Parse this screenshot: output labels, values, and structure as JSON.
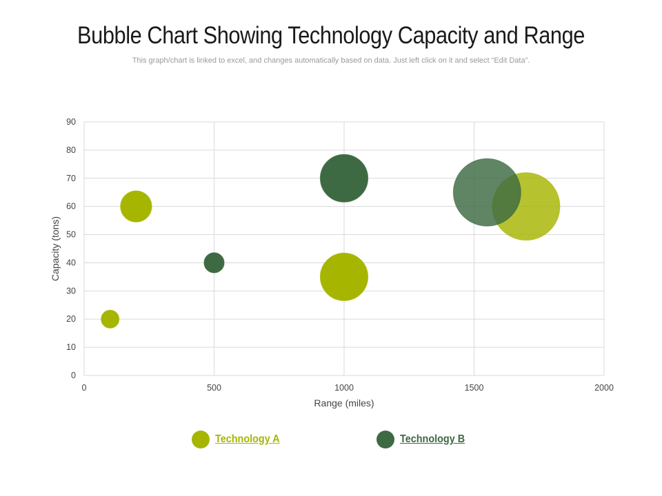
{
  "page": {
    "title": "Bubble Chart Showing Technology Capacity and Range",
    "subtitle": "This graph/chart is linked to excel, and changes automatically based on data. Just left click on it and select “Edit Data”."
  },
  "colors": {
    "technology_a": "#a6b600",
    "technology_b": "#3d6a43",
    "grid": "#d9d9d9"
  },
  "chart_data": {
    "type": "scatter",
    "variant": "bubble",
    "xlabel": "Range (miles)",
    "ylabel": "Capacity (tons)",
    "xlim": [
      0,
      2000
    ],
    "ylim": [
      0,
      90
    ],
    "xticks": [
      0,
      500,
      1000,
      1500,
      2000
    ],
    "yticks": [
      0,
      10,
      20,
      30,
      40,
      50,
      60,
      70,
      80,
      90
    ],
    "grid": true,
    "legend_position": "bottom",
    "series": [
      {
        "name": "Technology A",
        "points": [
          {
            "x": 100,
            "y": 20,
            "size": 2
          },
          {
            "x": 200,
            "y": 60,
            "size": 6
          },
          {
            "x": 1000,
            "y": 35,
            "size": 14
          },
          {
            "x": 1700,
            "y": 60,
            "size": 28
          }
        ]
      },
      {
        "name": "Technology B",
        "points": [
          {
            "x": 500,
            "y": 40,
            "size": 2.5
          },
          {
            "x": 1000,
            "y": 70,
            "size": 14
          },
          {
            "x": 1550,
            "y": 65,
            "size": 28
          }
        ]
      }
    ]
  }
}
